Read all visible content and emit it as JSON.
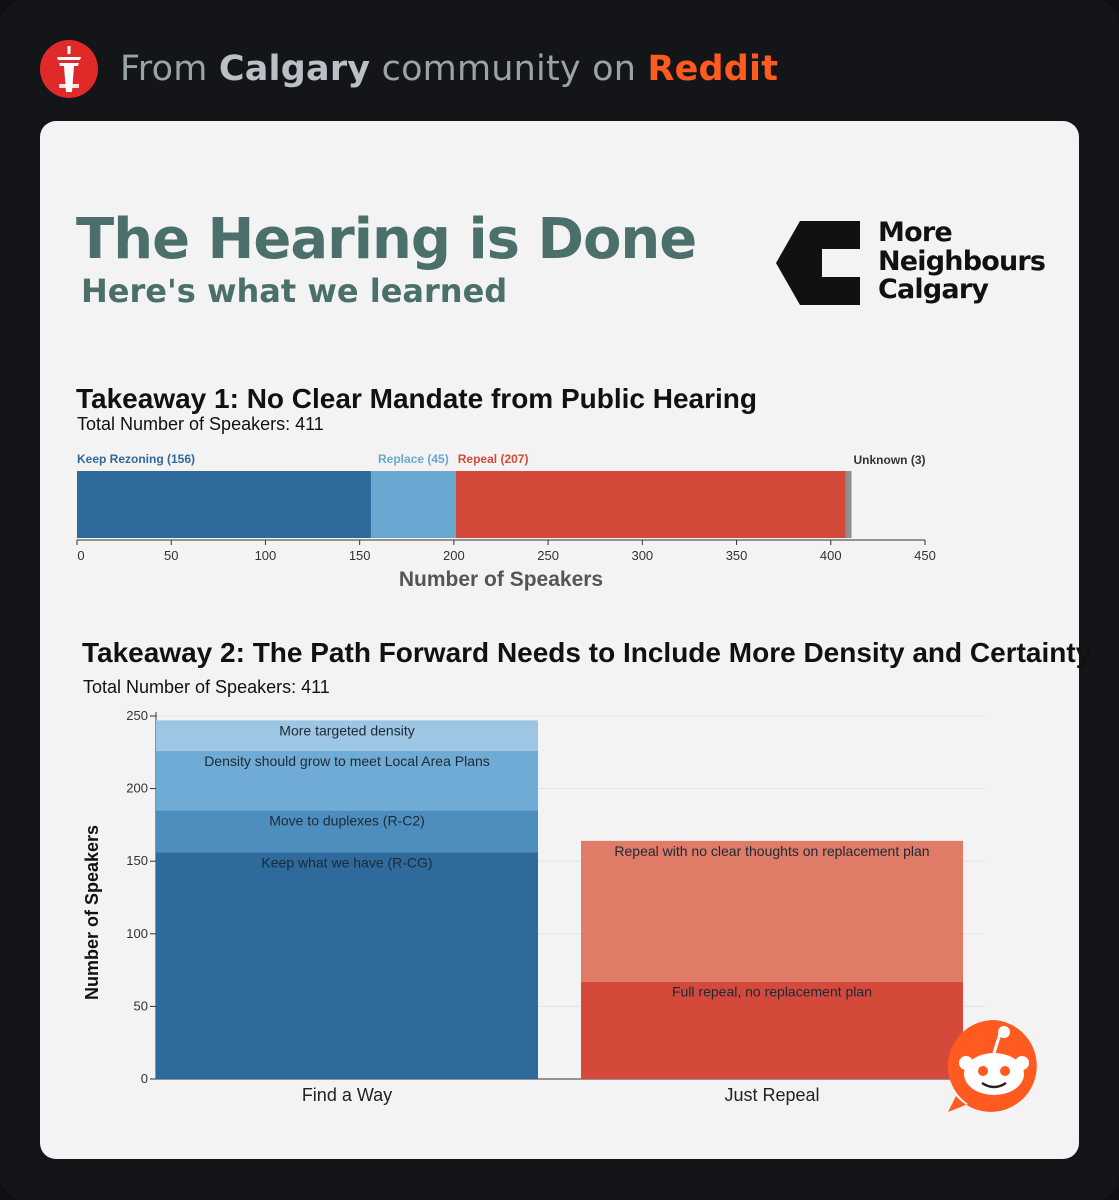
{
  "header": {
    "prefix": "From",
    "community": "Calgary",
    "middle": "community on",
    "site": "Reddit",
    "icon": "calgary-tower-icon",
    "accent_color": "#ff5a1f"
  },
  "poster": {
    "title": "The Hearing is Done",
    "subtitle": "Here's what we learned",
    "logo": {
      "icon": "more-neighbours-logo-mark",
      "lines": [
        "More",
        "Neighbours",
        "Calgary"
      ]
    }
  },
  "chart_data": [
    {
      "type": "bar",
      "orientation": "horizontal-stacked",
      "title": "Takeaway 1: No Clear Mandate from Public Hearing",
      "subtitle": "Total Number of Speakers: 411",
      "xlabel": "Number of Speakers",
      "xlim": [
        0,
        450
      ],
      "xticks": [
        0,
        50,
        100,
        150,
        200,
        250,
        300,
        350,
        400,
        450
      ],
      "grid": false,
      "segments": [
        {
          "name": "Keep Rezoning",
          "value": 156,
          "label": "Keep Rezoning (156)",
          "color": "#2f6a9c",
          "label_color": "#2f6a9c"
        },
        {
          "name": "Replace",
          "value": 45,
          "label": "Replace (45)",
          "color": "#69a8d1",
          "label_color": "#69a8d1"
        },
        {
          "name": "Repeal",
          "value": 207,
          "label": "Repeal (207)",
          "color": "#d4493a",
          "label_color": "#d4493a"
        },
        {
          "name": "Unknown",
          "value": 3,
          "label": "Unknown (3)",
          "color": "#8f8f8f",
          "label_color": "#333333"
        }
      ]
    },
    {
      "type": "bar",
      "orientation": "vertical-stacked",
      "title": "Takeaway 2: The Path Forward Needs to Include More Density and Certainty",
      "subtitle": "Total Number of Speakers: 411",
      "ylabel": "Number of Speakers",
      "ylim": [
        0,
        250
      ],
      "yticks": [
        0,
        50,
        100,
        150,
        200,
        250
      ],
      "grid": true,
      "categories": [
        "Find a Way",
        "Just Repeal"
      ],
      "stacks": [
        {
          "category": "Find a Way",
          "segments": [
            {
              "name": "Keep what we have (R-CG)",
              "value": 156,
              "color": "#2f6a9c"
            },
            {
              "name": "Move to duplexes (R-C2)",
              "value": 29,
              "color": "#4d8ebf"
            },
            {
              "name": "Density should grow to meet Local Area Plans",
              "value": 41,
              "color": "#6fabd4"
            },
            {
              "name": "More targeted density",
              "value": 21,
              "color": "#9cc6e3"
            }
          ]
        },
        {
          "category": "Just Repeal",
          "segments": [
            {
              "name": "Full repeal, no replacement plan",
              "value": 67,
              "color": "#d4493a"
            },
            {
              "name": "Repeal with no clear thoughts on replacement plan",
              "value": 97,
              "color": "#e07b67"
            }
          ]
        }
      ]
    }
  ],
  "watermark": {
    "icon": "reddit-snoo-icon"
  }
}
